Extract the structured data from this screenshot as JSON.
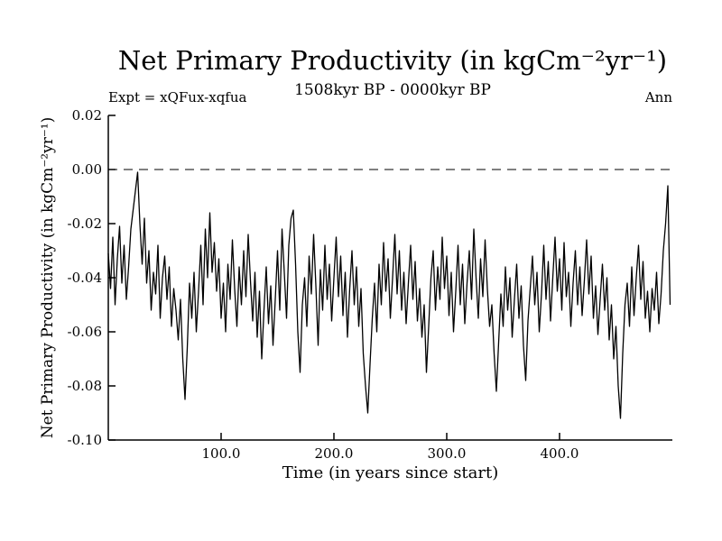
{
  "header": {
    "title": "Net Primary Productivity (in kgCm⁻²yr⁻¹)",
    "subtitle": "1508kyr BP - 0000kyr BP",
    "expt_label": "Expt = xQFux-xqfua",
    "period_label": "Ann"
  },
  "chart_data": {
    "type": "line",
    "title": "Net Primary Productivity (in kgCm⁻²yr⁻¹)",
    "subtitle": "1508kyr BP - 0000kyr BP",
    "xlabel": "Time (in years since start)",
    "ylabel": "Net Primary Productivity (in kgCm⁻²yr⁻¹)",
    "xlim": [
      0,
      500
    ],
    "ylim": [
      -0.1,
      0.02
    ],
    "grid": false,
    "legend": "none",
    "line_color": "#000000",
    "zero_line": {
      "y": 0.0,
      "style": "dashed"
    },
    "xticks": {
      "values": [
        100,
        200,
        300,
        400
      ],
      "labels": [
        "100.0",
        "200.0",
        "300.0",
        "400.0"
      ]
    },
    "yticks": {
      "values": [
        0.02,
        0.0,
        -0.02,
        -0.04,
        -0.06,
        -0.08,
        -0.1
      ],
      "labels": [
        "0.02",
        "0.00",
        "-0.02",
        "-0.04",
        "-0.06",
        "-0.08",
        "-0.10"
      ]
    },
    "series": [
      {
        "name": "Net Primary Productivity (Ann)",
        "x_start": 0,
        "x_step": 2,
        "values": [
          -0.031,
          -0.044,
          -0.025,
          -0.05,
          -0.033,
          -0.021,
          -0.042,
          -0.028,
          -0.048,
          -0.036,
          -0.022,
          -0.015,
          -0.008,
          -0.001,
          -0.02,
          -0.035,
          -0.018,
          -0.042,
          -0.03,
          -0.052,
          -0.038,
          -0.046,
          -0.028,
          -0.055,
          -0.04,
          -0.032,
          -0.048,
          -0.036,
          -0.058,
          -0.044,
          -0.052,
          -0.063,
          -0.048,
          -0.07,
          -0.085,
          -0.066,
          -0.042,
          -0.055,
          -0.038,
          -0.06,
          -0.045,
          -0.028,
          -0.05,
          -0.022,
          -0.04,
          -0.016,
          -0.038,
          -0.027,
          -0.045,
          -0.033,
          -0.055,
          -0.042,
          -0.06,
          -0.035,
          -0.048,
          -0.026,
          -0.044,
          -0.058,
          -0.036,
          -0.05,
          -0.03,
          -0.047,
          -0.024,
          -0.041,
          -0.056,
          -0.038,
          -0.062,
          -0.045,
          -0.07,
          -0.052,
          -0.036,
          -0.057,
          -0.043,
          -0.065,
          -0.048,
          -0.03,
          -0.052,
          -0.022,
          -0.038,
          -0.055,
          -0.028,
          -0.018,
          -0.015,
          -0.035,
          -0.06,
          -0.075,
          -0.05,
          -0.04,
          -0.058,
          -0.032,
          -0.046,
          -0.024,
          -0.043,
          -0.065,
          -0.037,
          -0.052,
          -0.028,
          -0.048,
          -0.035,
          -0.056,
          -0.04,
          -0.025,
          -0.047,
          -0.032,
          -0.054,
          -0.038,
          -0.062,
          -0.044,
          -0.03,
          -0.05,
          -0.036,
          -0.058,
          -0.044,
          -0.068,
          -0.08,
          -0.09,
          -0.072,
          -0.055,
          -0.042,
          -0.06,
          -0.035,
          -0.05,
          -0.027,
          -0.045,
          -0.033,
          -0.055,
          -0.04,
          -0.024,
          -0.046,
          -0.03,
          -0.052,
          -0.038,
          -0.057,
          -0.042,
          -0.028,
          -0.048,
          -0.034,
          -0.056,
          -0.044,
          -0.062,
          -0.05,
          -0.075,
          -0.058,
          -0.04,
          -0.03,
          -0.052,
          -0.036,
          -0.048,
          -0.025,
          -0.044,
          -0.032,
          -0.054,
          -0.038,
          -0.06,
          -0.045,
          -0.028,
          -0.05,
          -0.035,
          -0.057,
          -0.042,
          -0.03,
          -0.048,
          -0.022,
          -0.04,
          -0.055,
          -0.033,
          -0.047,
          -0.026,
          -0.044,
          -0.058,
          -0.05,
          -0.068,
          -0.082,
          -0.064,
          -0.046,
          -0.058,
          -0.036,
          -0.052,
          -0.04,
          -0.062,
          -0.048,
          -0.035,
          -0.055,
          -0.043,
          -0.065,
          -0.078,
          -0.056,
          -0.044,
          -0.032,
          -0.05,
          -0.038,
          -0.06,
          -0.046,
          -0.028,
          -0.048,
          -0.034,
          -0.056,
          -0.04,
          -0.025,
          -0.045,
          -0.033,
          -0.052,
          -0.027,
          -0.047,
          -0.038,
          -0.058,
          -0.042,
          -0.03,
          -0.05,
          -0.036,
          -0.054,
          -0.041,
          -0.026,
          -0.046,
          -0.032,
          -0.055,
          -0.043,
          -0.061,
          -0.048,
          -0.035,
          -0.052,
          -0.04,
          -0.063,
          -0.05,
          -0.07,
          -0.058,
          -0.08,
          -0.092,
          -0.068,
          -0.05,
          -0.042,
          -0.058,
          -0.036,
          -0.054,
          -0.04,
          -0.028,
          -0.048,
          -0.034,
          -0.055,
          -0.045,
          -0.06,
          -0.044,
          -0.052,
          -0.038,
          -0.057,
          -0.046,
          -0.03,
          -0.02,
          -0.006,
          -0.05
        ]
      }
    ]
  }
}
